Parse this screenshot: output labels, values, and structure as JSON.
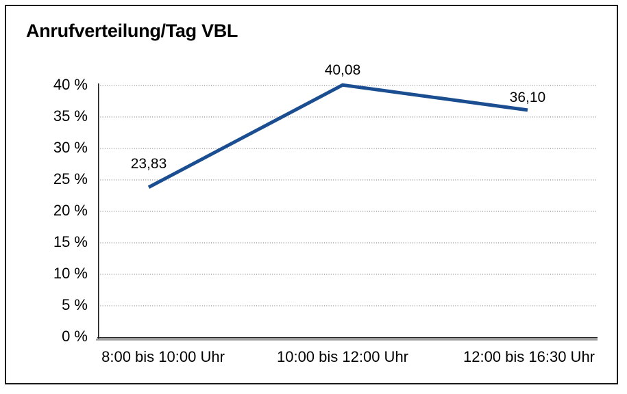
{
  "chart_data": {
    "type": "line",
    "title": "Anrufverteilung/Tag VBL",
    "categories": [
      "8:00 bis 10:00 Uhr",
      "10:00 bis 12:00 Uhr",
      "12:00 bis 16:30 Uhr"
    ],
    "values": [
      23.83,
      40.08,
      36.1
    ],
    "point_labels": [
      "23,83",
      "40,08",
      "36,10"
    ],
    "y_ticks": [
      "0 %",
      "5 %",
      "10 %",
      "15 %",
      "20 %",
      "25 %",
      "30 %",
      "35 %",
      "40 %"
    ],
    "ylim": [
      0,
      40
    ],
    "xlabel": "",
    "ylabel": "",
    "legend": "none",
    "grid": "horizontal-dotted",
    "colors": {
      "line": "#1b4e91",
      "grid": "#888888",
      "axis": "#1a1a1a",
      "axis_shadow": "#9c9c9c",
      "text": "#000000",
      "frame_border": "#1a1a1a",
      "background": "#ffffff"
    }
  }
}
